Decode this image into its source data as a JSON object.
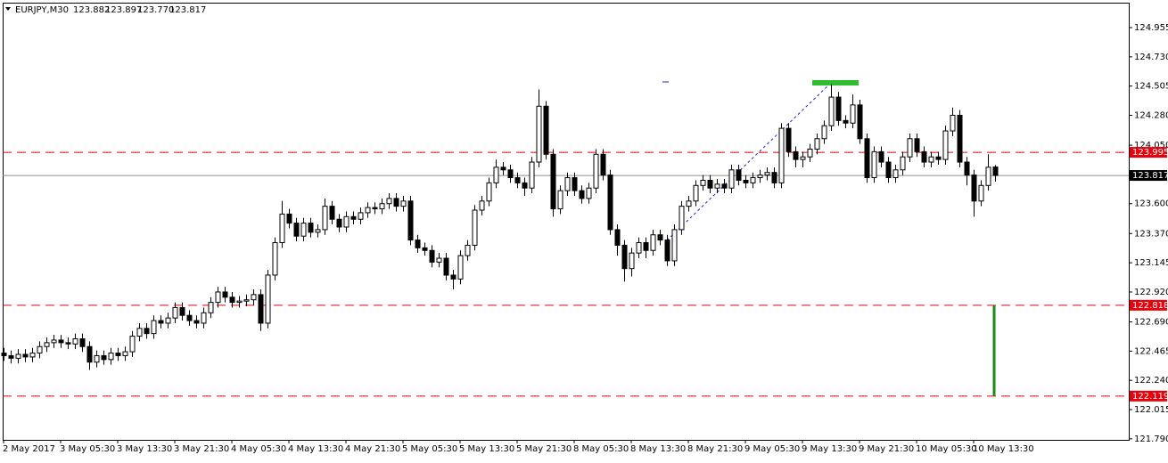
{
  "chart_data": {
    "type": "candlestick",
    "symbol": "EURJPY,M30",
    "header_prices": [
      "123.882",
      "123.897",
      "123.770",
      "123.817"
    ],
    "ylim": [
      121.782,
      125.147
    ],
    "yticks": [
      124.955,
      {
        "value": 124.73,
        "label": "124.730"
      },
      124.505,
      {
        "value": 124.28,
        "label": "124.280"
      },
      {
        "value": 124.05,
        "label": "124.050"
      },
      {
        "value": 123.6,
        "label": "123.600"
      },
      {
        "value": 123.37,
        "label": "123.370"
      },
      123.145,
      {
        "value": 122.92,
        "label": "122.920"
      },
      {
        "value": 122.69,
        "label": "122.690"
      },
      122.465,
      {
        "value": 122.24,
        "label": "122.240"
      },
      122.015,
      {
        "value": 121.79,
        "label": "121.790"
      }
    ],
    "levels": [
      123.995,
      122.818,
      122.119
    ],
    "level_color": "#e8000b",
    "price": 123.817,
    "price_line_color": "#8c8c8c",
    "up_color": "#ffffff",
    "down_color": "#000000",
    "categories": [
      "2 May 2017",
      null,
      null,
      null,
      null,
      null,
      null,
      null,
      "3 May 05:30",
      null,
      null,
      null,
      null,
      null,
      null,
      null,
      "3 May 13:30",
      null,
      null,
      null,
      null,
      null,
      null,
      null,
      "3 May 21:30",
      null,
      null,
      null,
      null,
      null,
      null,
      null,
      "4 May 05:30",
      null,
      null,
      null,
      null,
      null,
      null,
      null,
      "4 May 13:30",
      null,
      null,
      null,
      null,
      null,
      null,
      null,
      "4 May 21:30",
      null,
      null,
      null,
      null,
      null,
      null,
      null,
      "5 May 05:30",
      null,
      null,
      null,
      null,
      null,
      null,
      null,
      "5 May 13:30",
      null,
      null,
      null,
      null,
      null,
      null,
      null,
      "5 May 21:30",
      null,
      null,
      null,
      null,
      null,
      null,
      null,
      "8 May 05:30",
      null,
      null,
      null,
      null,
      null,
      null,
      null,
      "8 May 13:30",
      null,
      null,
      null,
      null,
      null,
      null,
      null,
      "8 May 21:30",
      null,
      null,
      null,
      null,
      null,
      null,
      null,
      "9 May 05:30",
      null,
      null,
      null,
      null,
      null,
      null,
      null,
      "9 May 13:30",
      null,
      null,
      null,
      null,
      null,
      null,
      null,
      "9 May 21:30",
      null,
      null,
      null,
      null,
      null,
      null,
      null,
      "10 May 05:30",
      null,
      null,
      null,
      null,
      null,
      null,
      null,
      "10 May 13:30",
      null,
      null,
      null
    ],
    "ohlc": [
      [
        122.45,
        122.49,
        122.39,
        122.43
      ],
      [
        122.43,
        122.47,
        122.37,
        122.41
      ],
      [
        122.41,
        122.48,
        122.37,
        122.44
      ],
      [
        122.44,
        122.48,
        122.38,
        122.42
      ],
      [
        122.42,
        122.49,
        122.38,
        122.45
      ],
      [
        122.45,
        122.54,
        122.41,
        122.5
      ],
      [
        122.5,
        122.57,
        122.46,
        122.53
      ],
      [
        122.53,
        122.59,
        122.49,
        122.55
      ],
      [
        122.55,
        122.59,
        122.49,
        122.53
      ],
      [
        122.53,
        122.57,
        122.48,
        122.52
      ],
      [
        122.52,
        122.6,
        122.48,
        122.56
      ],
      [
        122.56,
        122.6,
        122.46,
        122.5
      ],
      [
        122.5,
        122.54,
        122.32,
        122.38
      ],
      [
        122.38,
        122.47,
        122.34,
        122.43
      ],
      [
        122.43,
        122.47,
        122.36,
        122.4
      ],
      [
        122.4,
        122.49,
        122.36,
        122.45
      ],
      [
        122.45,
        122.49,
        122.39,
        122.43
      ],
      [
        122.43,
        122.5,
        122.39,
        122.46
      ],
      [
        122.46,
        122.62,
        122.42,
        122.58
      ],
      [
        122.58,
        122.68,
        122.54,
        122.64
      ],
      [
        122.64,
        122.68,
        122.56,
        122.6
      ],
      [
        122.6,
        122.74,
        122.56,
        122.7
      ],
      [
        122.7,
        122.74,
        122.64,
        122.68
      ],
      [
        122.68,
        122.76,
        122.64,
        122.72
      ],
      [
        122.72,
        122.84,
        122.68,
        122.8
      ],
      [
        122.8,
        122.84,
        122.7,
        122.74
      ],
      [
        122.74,
        122.78,
        122.66,
        122.7
      ],
      [
        122.7,
        122.74,
        122.64,
        122.68
      ],
      [
        122.68,
        122.8,
        122.64,
        122.76
      ],
      [
        122.76,
        122.88,
        122.72,
        122.84
      ],
      [
        122.84,
        122.96,
        122.8,
        122.92
      ],
      [
        122.92,
        122.96,
        122.84,
        122.88
      ],
      [
        122.88,
        122.92,
        122.8,
        122.84
      ],
      [
        122.84,
        122.89,
        122.8,
        122.85
      ],
      [
        122.85,
        122.9,
        122.81,
        122.86
      ],
      [
        122.86,
        122.94,
        122.82,
        122.9
      ],
      [
        122.9,
        122.94,
        122.62,
        122.68
      ],
      [
        122.68,
        123.09,
        122.64,
        123.05
      ],
      [
        123.05,
        123.34,
        123.01,
        123.3
      ],
      [
        123.3,
        123.62,
        123.26,
        123.52
      ],
      [
        123.52,
        123.56,
        123.41,
        123.45
      ],
      [
        123.45,
        123.49,
        123.31,
        123.35
      ],
      [
        123.35,
        123.49,
        123.31,
        123.45
      ],
      [
        123.45,
        123.49,
        123.34,
        123.38
      ],
      [
        123.38,
        123.44,
        123.34,
        123.4
      ],
      [
        123.4,
        123.64,
        123.36,
        123.58
      ],
      [
        123.58,
        123.62,
        123.44,
        123.48
      ],
      [
        123.48,
        123.52,
        123.38,
        123.42
      ],
      [
        123.42,
        123.54,
        123.38,
        123.5
      ],
      [
        123.5,
        123.54,
        123.44,
        123.48
      ],
      [
        123.48,
        123.57,
        123.44,
        123.53
      ],
      [
        123.53,
        123.61,
        123.49,
        123.57
      ],
      [
        123.57,
        123.61,
        123.52,
        123.56
      ],
      [
        123.56,
        123.64,
        123.52,
        123.6
      ],
      [
        123.6,
        123.68,
        123.56,
        123.64
      ],
      [
        123.64,
        123.68,
        123.54,
        123.58
      ],
      [
        123.58,
        123.66,
        123.54,
        123.62
      ],
      [
        123.62,
        123.66,
        123.28,
        123.32
      ],
      [
        123.32,
        123.36,
        123.22,
        123.26
      ],
      [
        123.26,
        123.3,
        123.2,
        123.24
      ],
      [
        123.24,
        123.28,
        123.11,
        123.15
      ],
      [
        123.15,
        123.22,
        123.11,
        123.18
      ],
      [
        123.18,
        123.22,
        123.01,
        123.05
      ],
      [
        123.05,
        123.09,
        122.94,
        123.02
      ],
      [
        123.02,
        123.24,
        122.98,
        123.2
      ],
      [
        123.2,
        123.32,
        123.16,
        123.28
      ],
      [
        123.28,
        123.59,
        123.24,
        123.55
      ],
      [
        123.55,
        123.66,
        123.51,
        123.62
      ],
      [
        123.62,
        123.8,
        123.58,
        123.76
      ],
      [
        123.76,
        123.94,
        123.72,
        123.88
      ],
      [
        123.88,
        123.92,
        123.82,
        123.86
      ],
      [
        123.86,
        123.9,
        123.76,
        123.8
      ],
      [
        123.8,
        123.84,
        123.72,
        123.76
      ],
      [
        123.76,
        123.8,
        123.66,
        123.72
      ],
      [
        123.72,
        123.96,
        123.68,
        123.92
      ],
      [
        123.92,
        124.48,
        123.88,
        124.35
      ],
      [
        124.35,
        124.39,
        123.94,
        123.98
      ],
      [
        123.98,
        124.02,
        123.5,
        123.56
      ],
      [
        123.56,
        123.74,
        123.52,
        123.7
      ],
      [
        123.7,
        123.84,
        123.66,
        123.8
      ],
      [
        123.8,
        123.84,
        123.66,
        123.7
      ],
      [
        123.7,
        123.74,
        123.6,
        123.64
      ],
      [
        123.64,
        123.76,
        123.6,
        123.72
      ],
      [
        123.72,
        124.02,
        123.68,
        123.98
      ],
      [
        123.98,
        124.02,
        123.78,
        123.82
      ],
      [
        123.82,
        123.86,
        123.36,
        123.4
      ],
      [
        123.4,
        123.44,
        123.2,
        123.28
      ],
      [
        123.28,
        123.32,
        123.0,
        123.1
      ],
      [
        123.1,
        123.26,
        123.04,
        123.22
      ],
      [
        123.22,
        123.34,
        123.18,
        123.3
      ],
      [
        123.3,
        123.34,
        123.18,
        123.24
      ],
      [
        123.24,
        123.4,
        123.2,
        123.36
      ],
      [
        123.36,
        123.4,
        123.28,
        123.32
      ],
      [
        123.32,
        123.36,
        123.12,
        123.16
      ],
      [
        123.16,
        123.44,
        123.12,
        123.4
      ],
      [
        123.4,
        123.62,
        123.36,
        123.58
      ],
      [
        123.58,
        123.66,
        123.54,
        123.62
      ],
      [
        123.62,
        123.78,
        123.58,
        123.74
      ],
      [
        123.74,
        123.82,
        123.7,
        123.78
      ],
      [
        123.78,
        123.82,
        123.68,
        123.72
      ],
      [
        123.72,
        123.79,
        123.68,
        123.75
      ],
      [
        123.75,
        123.79,
        123.68,
        123.72
      ],
      [
        123.72,
        123.9,
        123.68,
        123.86
      ],
      [
        123.86,
        123.9,
        123.74,
        123.78
      ],
      [
        123.78,
        123.82,
        123.72,
        123.76
      ],
      [
        123.76,
        123.84,
        123.72,
        123.8
      ],
      [
        123.8,
        123.86,
        123.76,
        123.82
      ],
      [
        123.82,
        123.88,
        123.78,
        123.84
      ],
      [
        123.84,
        123.88,
        123.72,
        123.76
      ],
      [
        123.76,
        124.22,
        123.72,
        124.18
      ],
      [
        124.18,
        124.22,
        123.96,
        124.0
      ],
      [
        124.0,
        124.04,
        123.88,
        123.94
      ],
      [
        123.94,
        124.0,
        123.88,
        123.96
      ],
      [
        123.96,
        124.06,
        123.92,
        124.02
      ],
      [
        124.02,
        124.14,
        123.98,
        124.1
      ],
      [
        124.1,
        124.24,
        124.06,
        124.2
      ],
      [
        124.2,
        124.52,
        124.16,
        124.42
      ],
      [
        124.42,
        124.46,
        124.2,
        124.24
      ],
      [
        124.24,
        124.28,
        124.18,
        124.22
      ],
      [
        124.22,
        124.44,
        124.18,
        124.36
      ],
      [
        124.36,
        124.4,
        124.06,
        124.1
      ],
      [
        124.1,
        124.14,
        123.76,
        123.8
      ],
      [
        123.8,
        124.04,
        123.76,
        124.0
      ],
      [
        124.0,
        124.04,
        123.88,
        123.92
      ],
      [
        123.92,
        123.96,
        123.76,
        123.8
      ],
      [
        123.8,
        123.9,
        123.76,
        123.86
      ],
      [
        123.86,
        124.0,
        123.82,
        123.96
      ],
      [
        123.96,
        124.14,
        123.92,
        124.1
      ],
      [
        124.1,
        124.14,
        123.96,
        124.0
      ],
      [
        124.0,
        124.04,
        123.88,
        123.92
      ],
      [
        123.92,
        124.0,
        123.88,
        123.96
      ],
      [
        123.96,
        124.0,
        123.9,
        123.94
      ],
      [
        123.94,
        124.2,
        123.9,
        124.16
      ],
      [
        124.16,
        124.34,
        124.12,
        124.28
      ],
      [
        124.28,
        124.32,
        123.88,
        123.92
      ],
      [
        123.92,
        123.96,
        123.74,
        123.82
      ],
      [
        123.82,
        123.86,
        123.5,
        123.62
      ],
      [
        123.62,
        123.78,
        123.58,
        123.74
      ],
      [
        123.74,
        123.98,
        123.7,
        123.88
      ],
      [
        123.882,
        123.897,
        123.77,
        123.817
      ]
    ]
  }
}
